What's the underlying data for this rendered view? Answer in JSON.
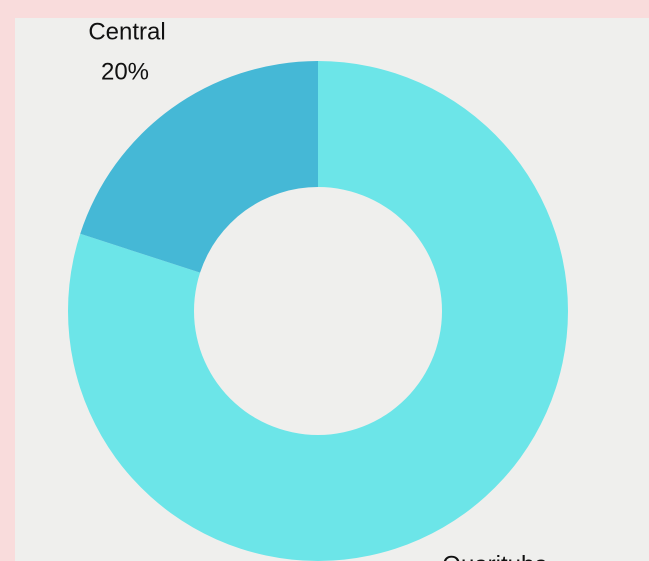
{
  "chart_data": {
    "type": "donut",
    "categories": [
      "Quarituba",
      "Central"
    ],
    "values": [
      80,
      20
    ],
    "value_labels": [
      null,
      "20%"
    ],
    "colors": [
      "#6ce5e8",
      "#45b8d6"
    ]
  }
}
